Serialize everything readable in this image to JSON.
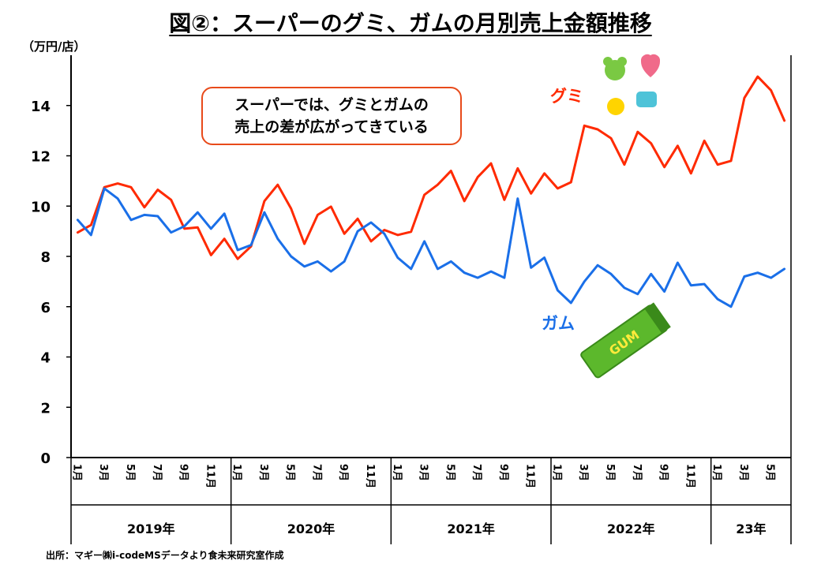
{
  "title": "図②：スーパーのグミ、ガムの月別売上金額推移",
  "unit_label": "（万円/店）",
  "source": "出所：マギー㈱i-codeMSデータより食未来研究室作成",
  "annotation": {
    "line1": "スーパーでは、グミとガムの",
    "line2": "売上の差が広がってきている"
  },
  "colors": {
    "gummy": "#ff2a00",
    "gum": "#1a6fe8",
    "annotation_border": "#e84a1a"
  },
  "icons": [
    "gummy-candy-illustration",
    "chewing-gum-pack-illustration"
  ],
  "chart_data": {
    "type": "line",
    "ylim": [
      0,
      16
    ],
    "yticks": [
      0,
      2,
      4,
      6,
      8,
      10,
      12,
      14
    ],
    "grid": false,
    "legend": "inline-labels",
    "year_labels": [
      "2019年",
      "2020年",
      "2021年",
      "2022年",
      "23年"
    ],
    "year_month_counts": [
      12,
      12,
      12,
      12,
      6
    ],
    "x": [
      "2019-01",
      "2019-02",
      "2019-03",
      "2019-04",
      "2019-05",
      "2019-06",
      "2019-07",
      "2019-08",
      "2019-09",
      "2019-10",
      "2019-11",
      "2019-12",
      "2020-01",
      "2020-02",
      "2020-03",
      "2020-04",
      "2020-05",
      "2020-06",
      "2020-07",
      "2020-08",
      "2020-09",
      "2020-10",
      "2020-11",
      "2020-12",
      "2021-01",
      "2021-02",
      "2021-03",
      "2021-04",
      "2021-05",
      "2021-06",
      "2021-07",
      "2021-08",
      "2021-09",
      "2021-10",
      "2021-11",
      "2021-12",
      "2022-01",
      "2022-02",
      "2022-03",
      "2022-04",
      "2022-05",
      "2022-06",
      "2022-07",
      "2022-08",
      "2022-09",
      "2022-10",
      "2022-11",
      "2022-12",
      "2023-01",
      "2023-02",
      "2023-03",
      "2023-04",
      "2023-05",
      "2023-06"
    ],
    "x_tick_labels": [
      "1月",
      "",
      "3月",
      "",
      "5月",
      "",
      "7月",
      "",
      "9月",
      "",
      "11月",
      "",
      "1月",
      "",
      "3月",
      "",
      "5月",
      "",
      "7月",
      "",
      "9月",
      "",
      "11月",
      "",
      "1月",
      "",
      "3月",
      "",
      "5月",
      "",
      "7月",
      "",
      "9月",
      "",
      "11月",
      "",
      "1月",
      "",
      "3月",
      "",
      "5月",
      "",
      "7月",
      "",
      "9月",
      "",
      "11月",
      "",
      "1月",
      "",
      "3月",
      "",
      "5月",
      ""
    ],
    "series": [
      {
        "name": "グミ",
        "values": [
          8.95,
          9.25,
          10.75,
          10.9,
          10.75,
          9.95,
          10.65,
          10.25,
          9.1,
          9.15,
          8.05,
          8.7,
          7.9,
          8.4,
          10.2,
          10.85,
          9.9,
          8.5,
          9.65,
          9.98,
          8.9,
          9.5,
          8.6,
          9.05,
          8.85,
          8.98,
          10.45,
          10.85,
          11.4,
          10.2,
          11.15,
          11.7,
          10.25,
          11.5,
          10.5,
          11.3,
          10.7,
          10.95,
          13.2,
          13.05,
          12.7,
          11.65,
          12.95,
          12.5,
          11.55,
          12.4,
          11.3,
          12.6,
          11.65,
          11.8,
          14.3,
          15.15,
          14.6,
          13.4
        ]
      },
      {
        "name": "ガム",
        "values": [
          9.45,
          8.85,
          10.7,
          10.3,
          9.45,
          9.65,
          9.6,
          8.95,
          9.2,
          9.75,
          9.1,
          9.7,
          8.25,
          8.45,
          9.75,
          8.7,
          8.0,
          7.6,
          7.8,
          7.4,
          7.8,
          9.0,
          9.35,
          8.9,
          7.95,
          7.5,
          8.6,
          7.5,
          7.8,
          7.35,
          7.15,
          7.4,
          7.15,
          10.3,
          7.55,
          7.95,
          6.65,
          6.15,
          7.0,
          7.65,
          7.3,
          6.75,
          6.5,
          7.3,
          6.6,
          7.75,
          6.85,
          6.9,
          6.3,
          6.0,
          7.2,
          7.35,
          7.15,
          7.5
        ]
      }
    ]
  }
}
